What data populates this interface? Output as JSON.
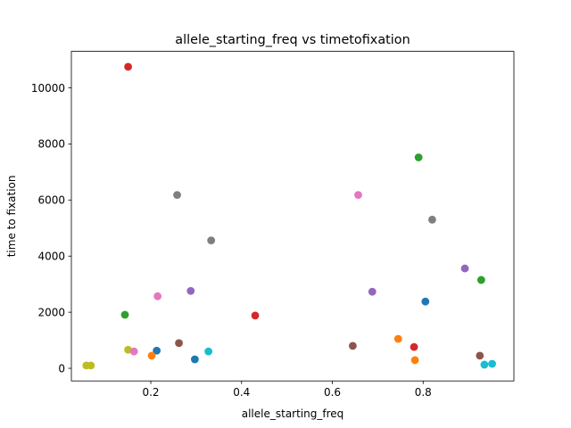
{
  "chart_data": {
    "type": "scatter",
    "title": "allele_starting_freq vs timetofixation",
    "xlabel": "allele_starting_freq",
    "ylabel": "time to fixation",
    "xlim": [
      0.025,
      1.0
    ],
    "ylim": [
      -450,
      11300
    ],
    "xticks": [
      0.2,
      0.4,
      0.6,
      0.8
    ],
    "xtick_labels": [
      "0.2",
      "0.4",
      "0.6",
      "0.8"
    ],
    "yticks": [
      0,
      2000,
      4000,
      6000,
      8000,
      10000
    ],
    "ytick_labels": [
      "0",
      "2000",
      "4000",
      "6000",
      "8000",
      "10000"
    ],
    "grid": false,
    "legend": "none",
    "points": [
      {
        "x": 0.15,
        "y": 10750,
        "color": "#d62728"
      },
      {
        "x": 0.79,
        "y": 7520,
        "color": "#2ca02c"
      },
      {
        "x": 0.258,
        "y": 6180,
        "color": "#7f7f7f"
      },
      {
        "x": 0.657,
        "y": 6180,
        "color": "#e377c2"
      },
      {
        "x": 0.82,
        "y": 5300,
        "color": "#7f7f7f"
      },
      {
        "x": 0.333,
        "y": 4560,
        "color": "#7f7f7f"
      },
      {
        "x": 0.892,
        "y": 3560,
        "color": "#9467bd"
      },
      {
        "x": 0.928,
        "y": 3150,
        "color": "#2ca02c"
      },
      {
        "x": 0.288,
        "y": 2760,
        "color": "#9467bd"
      },
      {
        "x": 0.688,
        "y": 2730,
        "color": "#9467bd"
      },
      {
        "x": 0.215,
        "y": 2570,
        "color": "#e377c2"
      },
      {
        "x": 0.805,
        "y": 2380,
        "color": "#1f77b4"
      },
      {
        "x": 0.143,
        "y": 1910,
        "color": "#2ca02c"
      },
      {
        "x": 0.43,
        "y": 1880,
        "color": "#d62728"
      },
      {
        "x": 0.745,
        "y": 1050,
        "color": "#ff7f0e"
      },
      {
        "x": 0.262,
        "y": 900,
        "color": "#8c564b"
      },
      {
        "x": 0.645,
        "y": 800,
        "color": "#8c564b"
      },
      {
        "x": 0.78,
        "y": 760,
        "color": "#d62728"
      },
      {
        "x": 0.15,
        "y": 660,
        "color": "#bcbd22"
      },
      {
        "x": 0.213,
        "y": 630,
        "color": "#1f77b4"
      },
      {
        "x": 0.163,
        "y": 600,
        "color": "#e377c2"
      },
      {
        "x": 0.327,
        "y": 600,
        "color": "#17becf"
      },
      {
        "x": 0.925,
        "y": 450,
        "color": "#8c564b"
      },
      {
        "x": 0.202,
        "y": 450,
        "color": "#ff7f0e"
      },
      {
        "x": 0.297,
        "y": 320,
        "color": "#1f77b4"
      },
      {
        "x": 0.782,
        "y": 290,
        "color": "#ff7f0e"
      },
      {
        "x": 0.952,
        "y": 160,
        "color": "#17becf"
      },
      {
        "x": 0.935,
        "y": 130,
        "color": "#17becf"
      },
      {
        "x": 0.058,
        "y": 100,
        "color": "#bcbd22"
      },
      {
        "x": 0.068,
        "y": 100,
        "color": "#bcbd22"
      }
    ]
  }
}
